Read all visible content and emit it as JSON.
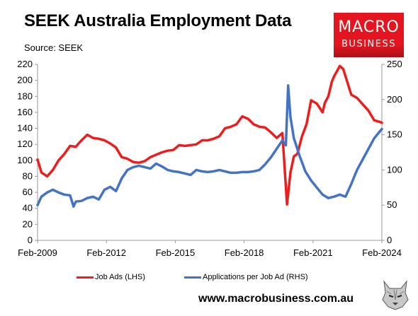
{
  "title": "SEEK Australia Employment Data",
  "source": "Source: SEEK",
  "logo": {
    "line1": "MACRO",
    "line2": "BUSINESS",
    "color": "#e4151f"
  },
  "footer_url": "www.macrobusiness.com.au",
  "chart_data": {
    "type": "line",
    "x_ticks": [
      "Feb-2009",
      "Feb-2012",
      "Feb-2015",
      "Feb-2018",
      "Feb-2021",
      "Feb-2024"
    ],
    "xlim": [
      2009.083,
      2024.083
    ],
    "y_left": {
      "ticks": [
        0,
        20,
        40,
        60,
        80,
        100,
        120,
        140,
        160,
        180,
        200,
        220
      ],
      "lim": [
        0,
        220
      ]
    },
    "y_right": {
      "ticks": [
        0,
        50,
        100,
        150,
        200,
        250
      ],
      "lim": [
        0,
        250
      ]
    },
    "grid": false,
    "legend_position": "bottom",
    "series": [
      {
        "name": "Job Ads (LHS)",
        "axis": "left",
        "color": "#ee1c1c",
        "x": [
          2009.083,
          2009.25,
          2009.5,
          2009.75,
          2010.0,
          2010.25,
          2010.5,
          2010.75,
          2010.9,
          2011.0,
          2011.25,
          2011.5,
          2011.75,
          2012.0,
          2012.25,
          2012.5,
          2012.75,
          2013.0,
          2013.25,
          2013.5,
          2013.75,
          2014.0,
          2014.25,
          2014.5,
          2014.75,
          2015.0,
          2015.25,
          2015.5,
          2015.75,
          2016.0,
          2016.25,
          2016.5,
          2016.75,
          2017.0,
          2017.25,
          2017.5,
          2017.75,
          2018.0,
          2018.25,
          2018.5,
          2018.75,
          2019.0,
          2019.25,
          2019.5,
          2019.75,
          2019.95,
          2020.1,
          2020.25,
          2020.4,
          2020.6,
          2020.8,
          2021.0,
          2021.25,
          2021.5,
          2021.6,
          2021.75,
          2021.9,
          2022.0,
          2022.1,
          2022.25,
          2022.4,
          2022.5,
          2022.75,
          2023.0,
          2023.25,
          2023.5,
          2023.75,
          2024.0,
          2024.083
        ],
        "values": [
          101,
          85,
          80,
          88,
          100,
          108,
          118,
          117,
          122,
          125,
          132,
          128,
          127,
          125,
          121,
          116,
          104,
          102,
          98,
          97,
          99,
          104,
          107,
          110,
          112,
          113,
          119,
          118,
          119,
          120,
          125,
          125,
          127,
          130,
          140,
          142,
          145,
          155,
          152,
          145,
          142,
          141,
          135,
          128,
          134,
          45,
          85,
          105,
          108,
          130,
          145,
          175,
          171,
          160,
          172,
          180,
          198,
          205,
          210,
          218,
          214,
          205,
          182,
          178,
          170,
          162,
          150,
          148,
          147
        ]
      },
      {
        "name": "Applications per Job Ad (RHS)",
        "axis": "right",
        "color": "#4472c4",
        "x": [
          2009.083,
          2009.25,
          2009.5,
          2009.75,
          2010.0,
          2010.25,
          2010.5,
          2010.65,
          2010.75,
          2011.0,
          2011.25,
          2011.5,
          2011.75,
          2012.0,
          2012.25,
          2012.5,
          2012.75,
          2013.0,
          2013.25,
          2013.5,
          2013.75,
          2014.0,
          2014.25,
          2014.5,
          2014.75,
          2015.0,
          2015.25,
          2015.5,
          2015.75,
          2016.0,
          2016.25,
          2016.5,
          2016.75,
          2017.0,
          2017.25,
          2017.5,
          2017.75,
          2018.0,
          2018.25,
          2018.5,
          2018.75,
          2019.0,
          2019.25,
          2019.5,
          2019.75,
          2019.9,
          2020.0,
          2020.1,
          2020.25,
          2020.5,
          2020.75,
          2021.0,
          2021.25,
          2021.5,
          2021.75,
          2022.0,
          2022.25,
          2022.5,
          2022.75,
          2023.0,
          2023.25,
          2023.5,
          2023.75,
          2024.0,
          2024.083
        ],
        "values": [
          50,
          62,
          68,
          72,
          68,
          65,
          64,
          48,
          55,
          56,
          60,
          62,
          58,
          72,
          76,
          70,
          88,
          100,
          104,
          106,
          104,
          102,
          109,
          105,
          100,
          98,
          97,
          95,
          93,
          100,
          98,
          97,
          98,
          100,
          98,
          96,
          96,
          97,
          97,
          98,
          100,
          108,
          118,
          130,
          142,
          135,
          220,
          175,
          145,
          120,
          98,
          85,
          75,
          65,
          60,
          62,
          65,
          62,
          80,
          100,
          115,
          130,
          145,
          155,
          158
        ]
      }
    ]
  }
}
